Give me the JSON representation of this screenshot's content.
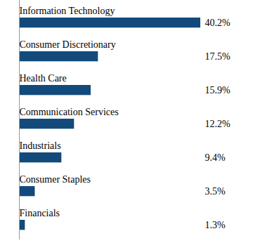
{
  "chart_data": {
    "type": "bar",
    "orientation": "horizontal",
    "categories": [
      "Information Technology",
      "Consumer Discretionary",
      "Health Care",
      "Communication Services",
      "Industrials",
      "Consumer Staples",
      "Financials"
    ],
    "values": [
      40.2,
      17.5,
      15.9,
      12.2,
      9.4,
      3.5,
      1.3
    ],
    "value_labels": [
      "40.2%",
      "17.5%",
      "15.9%",
      "12.2%",
      "9.4%",
      "3.5%",
      "1.3%"
    ],
    "color": "#124a7c",
    "data_labels": true,
    "tick_labels": false,
    "grid": false
  }
}
